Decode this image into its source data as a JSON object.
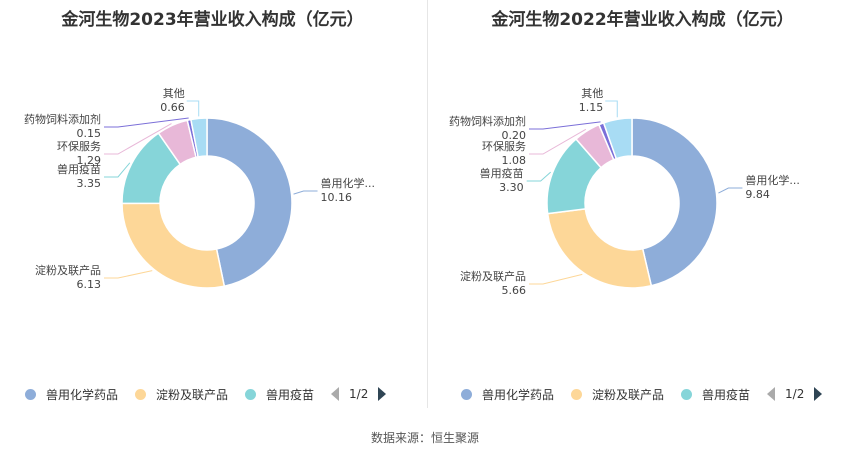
{
  "colors": [
    "#8eadd9",
    "#fdd798",
    "#86d5d9",
    "#e8b8d8",
    "#7b6fd8",
    "#a8dcf4"
  ],
  "legend": {
    "items": [
      "兽用化学药品",
      "淀粉及联产品",
      "兽用疫苗"
    ],
    "page": "1/2"
  },
  "source": "数据来源：恒生聚源",
  "chart_data": [
    {
      "type": "pie",
      "title": "金河生物2023年营业收入构成（亿元）",
      "series": [
        {
          "name": "兽用化学药品",
          "label": "兽用化学...",
          "value": 10.16,
          "value_label": "10.16"
        },
        {
          "name": "淀粉及联产品",
          "label": "淀粉及联产品",
          "value": 6.13,
          "value_label": "6.13"
        },
        {
          "name": "兽用疫苗",
          "label": "兽用疫苗",
          "value": 3.35,
          "value_label": "3.35"
        },
        {
          "name": "环保服务",
          "label": "环保服务",
          "value": 1.29,
          "value_label": "1.29"
        },
        {
          "name": "药物饲料添加剂",
          "label": "药物饲料添加剂",
          "value": 0.15,
          "value_label": "0.15"
        },
        {
          "name": "其他",
          "label": "其他",
          "value": 0.66,
          "value_label": "0.66"
        }
      ]
    },
    {
      "type": "pie",
      "title": "金河生物2022年营业收入构成（亿元）",
      "series": [
        {
          "name": "兽用化学药品",
          "label": "兽用化学...",
          "value": 9.84,
          "value_label": "9.84"
        },
        {
          "name": "淀粉及联产品",
          "label": "淀粉及联产品",
          "value": 5.66,
          "value_label": "5.66"
        },
        {
          "name": "兽用疫苗",
          "label": "兽用疫苗",
          "value": 3.3,
          "value_label": "3.30"
        },
        {
          "name": "环保服务",
          "label": "环保服务",
          "value": 1.08,
          "value_label": "1.08"
        },
        {
          "name": "药物饲料添加剂",
          "label": "药物饲料添加剂",
          "value": 0.2,
          "value_label": "0.20"
        },
        {
          "name": "其他",
          "label": "其他",
          "value": 1.15,
          "value_label": "1.15"
        }
      ]
    }
  ]
}
